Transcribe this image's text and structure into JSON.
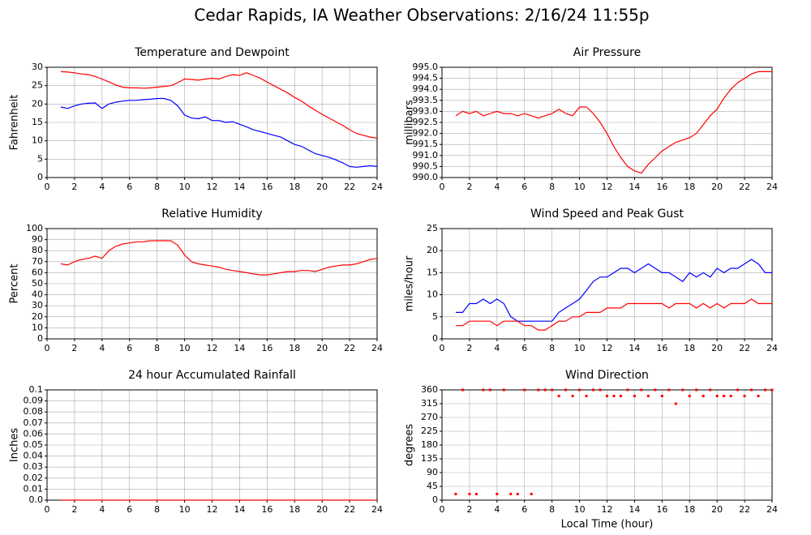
{
  "title": "Cedar Rapids, IA Weather Observations: 2/16/24 11:55p",
  "chart_data": [
    {
      "type": "line",
      "title": "Temperature and Dewpoint",
      "ylabel": "Fahrenheit",
      "x": [
        1,
        1.5,
        2,
        2.5,
        3,
        3.5,
        4,
        4.5,
        5,
        5.5,
        6,
        6.5,
        7,
        7.5,
        8,
        8.5,
        9,
        9.5,
        10,
        10.5,
        11,
        11.5,
        12,
        12.5,
        13,
        13.5,
        14,
        14.5,
        15,
        15.5,
        16,
        16.5,
        17,
        17.5,
        18,
        18.5,
        19,
        19.5,
        20,
        20.5,
        21,
        21.5,
        22,
        22.5,
        23,
        23.5,
        24
      ],
      "series": [
        {
          "color": "#ff0000",
          "values": [
            28.8,
            28.7,
            28.5,
            28.2,
            28.0,
            27.5,
            26.8,
            26.0,
            25.2,
            24.6,
            24.4,
            24.4,
            24.3,
            24.4,
            24.6,
            24.8,
            25.0,
            25.8,
            26.8,
            26.7,
            26.5,
            26.8,
            27.0,
            26.8,
            27.5,
            28.0,
            27.8,
            28.5,
            27.8,
            27.0,
            26.0,
            25.0,
            24.0,
            23.0,
            21.8,
            20.8,
            19.5,
            18.3,
            17.2,
            16.2,
            15.2,
            14.2,
            13.0,
            12.0,
            11.5,
            11.0,
            10.7
          ]
        },
        {
          "color": "#0000ff",
          "values": [
            19.2,
            18.8,
            19.5,
            20.0,
            20.2,
            20.3,
            18.8,
            20.0,
            20.5,
            20.8,
            21.0,
            21.0,
            21.2,
            21.3,
            21.5,
            21.5,
            21.0,
            19.5,
            17.0,
            16.2,
            16.0,
            16.5,
            15.5,
            15.5,
            15.0,
            15.2,
            14.5,
            13.8,
            13.0,
            12.5,
            12.0,
            11.5,
            11.0,
            10.0,
            9.0,
            8.5,
            7.5,
            6.5,
            6.0,
            5.5,
            4.8,
            4.0,
            3.0,
            2.8,
            3.0,
            3.2,
            3.0
          ]
        }
      ],
      "xlim": [
        0,
        24
      ],
      "xticks": [
        0,
        2,
        4,
        6,
        8,
        10,
        12,
        14,
        16,
        18,
        20,
        22,
        24
      ],
      "ylim": [
        0,
        30
      ],
      "yticks": [
        0,
        5,
        10,
        15,
        20,
        25,
        30
      ],
      "grid": true
    },
    {
      "type": "line",
      "title": "Air Pressure",
      "ylabel": "millibars",
      "x": [
        1,
        1.5,
        2,
        2.5,
        3,
        3.5,
        4,
        4.5,
        5,
        5.5,
        6,
        6.5,
        7,
        7.5,
        8,
        8.5,
        9,
        9.5,
        10,
        10.5,
        11,
        11.5,
        12,
        12.5,
        13,
        13.5,
        14,
        14.5,
        15,
        15.5,
        16,
        16.5,
        17,
        17.5,
        18,
        18.5,
        19,
        19.5,
        20,
        20.5,
        21,
        21.5,
        22,
        22.5,
        23,
        23.5,
        24
      ],
      "series": [
        {
          "color": "#ff0000",
          "values": [
            992.8,
            993.0,
            992.9,
            993.0,
            992.8,
            992.9,
            993.0,
            992.9,
            992.9,
            992.8,
            992.9,
            992.8,
            992.7,
            992.8,
            992.9,
            993.1,
            992.9,
            992.8,
            993.2,
            993.2,
            992.9,
            992.5,
            992.0,
            991.4,
            990.9,
            990.5,
            990.3,
            990.2,
            990.6,
            990.9,
            991.2,
            991.4,
            991.6,
            991.7,
            991.8,
            992.0,
            992.4,
            992.8,
            993.1,
            993.6,
            994.0,
            994.3,
            994.5,
            994.7,
            994.8,
            994.8,
            994.8
          ]
        }
      ],
      "xlim": [
        0,
        24
      ],
      "xticks": [
        0,
        2,
        4,
        6,
        8,
        10,
        12,
        14,
        16,
        18,
        20,
        22,
        24
      ],
      "ylim": [
        990,
        995
      ],
      "yticks": [
        {
          "value": 990,
          "label": "990.0"
        },
        {
          "value": 990.5,
          "label": "990.5"
        },
        {
          "value": 991,
          "label": "991.0"
        },
        {
          "value": 991.5,
          "label": "991.5"
        },
        {
          "value": 992,
          "label": "992.0"
        },
        {
          "value": 992.5,
          "label": "992.5"
        },
        {
          "value": 993,
          "label": "993.0"
        },
        {
          "value": 993.5,
          "label": "993.5"
        },
        {
          "value": 994,
          "label": "994.0"
        },
        {
          "value": 994.5,
          "label": "994.5"
        },
        {
          "value": 995,
          "label": "995.0"
        }
      ],
      "grid": true
    },
    {
      "type": "line",
      "title": "Relative Humidity",
      "ylabel": "Percent",
      "x": [
        1,
        1.5,
        2,
        2.5,
        3,
        3.5,
        4,
        4.5,
        5,
        5.5,
        6,
        6.5,
        7,
        7.5,
        8,
        8.5,
        9,
        9.5,
        10,
        10.5,
        11,
        11.5,
        12,
        12.5,
        13,
        13.5,
        14,
        14.5,
        15,
        15.5,
        16,
        16.5,
        17,
        17.5,
        18,
        18.5,
        19,
        19.5,
        20,
        20.5,
        21,
        21.5,
        22,
        22.5,
        23,
        23.5,
        24
      ],
      "series": [
        {
          "color": "#ff0000",
          "values": [
            68,
            67,
            70,
            72,
            73,
            75,
            73,
            80,
            84,
            86,
            87,
            88,
            88,
            89,
            89,
            89,
            89,
            85,
            76,
            70,
            68,
            67,
            66,
            65,
            63,
            62,
            61,
            60,
            59,
            58,
            58,
            59,
            60,
            61,
            61,
            62,
            62,
            61,
            63,
            65,
            66,
            67,
            67,
            68,
            70,
            72,
            73
          ]
        }
      ],
      "xlim": [
        0,
        24
      ],
      "xticks": [
        0,
        2,
        4,
        6,
        8,
        10,
        12,
        14,
        16,
        18,
        20,
        22,
        24
      ],
      "ylim": [
        0,
        100
      ],
      "yticks": [
        0,
        10,
        20,
        30,
        40,
        50,
        60,
        70,
        80,
        90,
        100
      ],
      "grid": true
    },
    {
      "type": "line",
      "title": "Wind Speed and Peak Gust",
      "ylabel": "miles/hour",
      "x": [
        1,
        1.5,
        2,
        2.5,
        3,
        3.5,
        4,
        4.5,
        5,
        5.5,
        6,
        6.5,
        7,
        7.5,
        8,
        8.5,
        9,
        9.5,
        10,
        10.5,
        11,
        11.5,
        12,
        12.5,
        13,
        13.5,
        14,
        14.5,
        15,
        15.5,
        16,
        16.5,
        17,
        17.5,
        18,
        18.5,
        19,
        19.5,
        20,
        20.5,
        21,
        21.5,
        22,
        22.5,
        23,
        23.5,
        24
      ],
      "series": [
        {
          "color": "#0000ff",
          "values": [
            6,
            6,
            8,
            8,
            9,
            8,
            9,
            8,
            5,
            4,
            4,
            4,
            4,
            4,
            4,
            6,
            7,
            8,
            9,
            11,
            13,
            14,
            14,
            15,
            16,
            16,
            15,
            16,
            17,
            16,
            15,
            15,
            14,
            13,
            15,
            14,
            15,
            14,
            16,
            15,
            16,
            16,
            17,
            18,
            17,
            15,
            15
          ]
        },
        {
          "color": "#ff0000",
          "values": [
            3,
            3,
            4,
            4,
            4,
            4,
            3,
            4,
            4,
            4,
            3,
            3,
            2,
            2,
            3,
            4,
            4,
            5,
            5,
            6,
            6,
            6,
            7,
            7,
            7,
            8,
            8,
            8,
            8,
            8,
            8,
            7,
            8,
            8,
            8,
            7,
            8,
            7,
            8,
            7,
            8,
            8,
            8,
            9,
            8,
            8,
            8
          ]
        }
      ],
      "xlim": [
        0,
        24
      ],
      "xticks": [
        0,
        2,
        4,
        6,
        8,
        10,
        12,
        14,
        16,
        18,
        20,
        22,
        24
      ],
      "ylim": [
        0,
        25
      ],
      "yticks": [
        0,
        5,
        10,
        15,
        20,
        25
      ],
      "grid": true
    },
    {
      "type": "line",
      "title": "24 hour Accumulated Rainfall",
      "ylabel": "Inches",
      "x": [
        1,
        1.5,
        2,
        2.5,
        3,
        3.5,
        4,
        4.5,
        5,
        5.5,
        6,
        6.5,
        7,
        7.5,
        8,
        8.5,
        9,
        9.5,
        10,
        10.5,
        11,
        11.5,
        12,
        12.5,
        13,
        13.5,
        14,
        14.5,
        15,
        15.5,
        16,
        16.5,
        17,
        17.5,
        18,
        18.5,
        19,
        19.5,
        20,
        20.5,
        21,
        21.5,
        22,
        22.5,
        23,
        23.5,
        24
      ],
      "series": [
        {
          "color": "#ff0000",
          "values": [
            0,
            0,
            0,
            0,
            0,
            0,
            0,
            0,
            0,
            0,
            0,
            0,
            0,
            0,
            0,
            0,
            0,
            0,
            0,
            0,
            0,
            0,
            0,
            0,
            0,
            0,
            0,
            0,
            0,
            0,
            0,
            0,
            0,
            0,
            0,
            0,
            0,
            0,
            0,
            0,
            0,
            0,
            0,
            0,
            0,
            0,
            0
          ]
        }
      ],
      "xlim": [
        0,
        24
      ],
      "xticks": [
        0,
        2,
        4,
        6,
        8,
        10,
        12,
        14,
        16,
        18,
        20,
        22,
        24
      ],
      "ylim": [
        0,
        0.1
      ],
      "yticks": [
        {
          "value": 0,
          "label": "0.0"
        },
        0.01,
        0.02,
        0.03,
        0.04,
        0.05,
        0.06,
        0.07,
        0.08,
        0.09,
        0.1
      ],
      "grid": true
    },
    {
      "type": "scatter",
      "title": "Wind Direction",
      "ylabel": "degrees",
      "xlabel": "Local Time (hour)",
      "x": [
        1,
        1.5,
        2,
        2.5,
        3,
        3.5,
        4,
        4.5,
        5,
        5.5,
        6,
        6.5,
        7,
        7.5,
        8,
        8.5,
        9,
        9.5,
        10,
        10.5,
        11,
        11.5,
        12,
        12.5,
        13,
        13.5,
        14,
        14.5,
        15,
        15.5,
        16,
        16.5,
        17,
        17.5,
        18,
        18.5,
        19,
        19.5,
        20,
        20.5,
        21,
        21.5,
        22,
        22.5,
        23,
        23.5,
        24
      ],
      "series": [
        {
          "color": "#ff0000",
          "values": [
            20,
            360,
            20,
            20,
            360,
            360,
            20,
            360,
            20,
            20,
            360,
            20,
            360,
            360,
            360,
            340,
            360,
            340,
            360,
            340,
            360,
            360,
            340,
            340,
            340,
            360,
            340,
            360,
            340,
            360,
            340,
            360,
            315,
            360,
            340,
            360,
            340,
            360,
            340,
            340,
            340,
            360,
            340,
            360,
            340,
            360,
            360
          ]
        }
      ],
      "xlim": [
        0,
        24
      ],
      "xticks": [
        0,
        2,
        4,
        6,
        8,
        10,
        12,
        14,
        16,
        18,
        20,
        22,
        24
      ],
      "ylim": [
        0,
        360
      ],
      "yticks": [
        0,
        45,
        90,
        135,
        180,
        225,
        270,
        315,
        360
      ],
      "grid": true
    }
  ]
}
